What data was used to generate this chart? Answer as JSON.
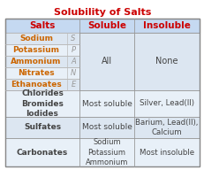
{
  "title": "Solubility of Salts",
  "title_color": "#cc0000",
  "header_color": "#cc0000",
  "bg_light": "#dce6f1",
  "bg_lighter": "#e8f0f8",
  "bg_white": "#ffffff",
  "salt_color": "#cc6600",
  "abbr_color": "#999999",
  "body_color": "#444444",
  "border_color": "#bbbbbb",
  "sane_salts": [
    "Sodium",
    "Potassium",
    "Ammonium",
    "Nitrates",
    "Ethanoates"
  ],
  "sane_abbrs": [
    "S",
    "P",
    "A",
    "N",
    "E"
  ]
}
